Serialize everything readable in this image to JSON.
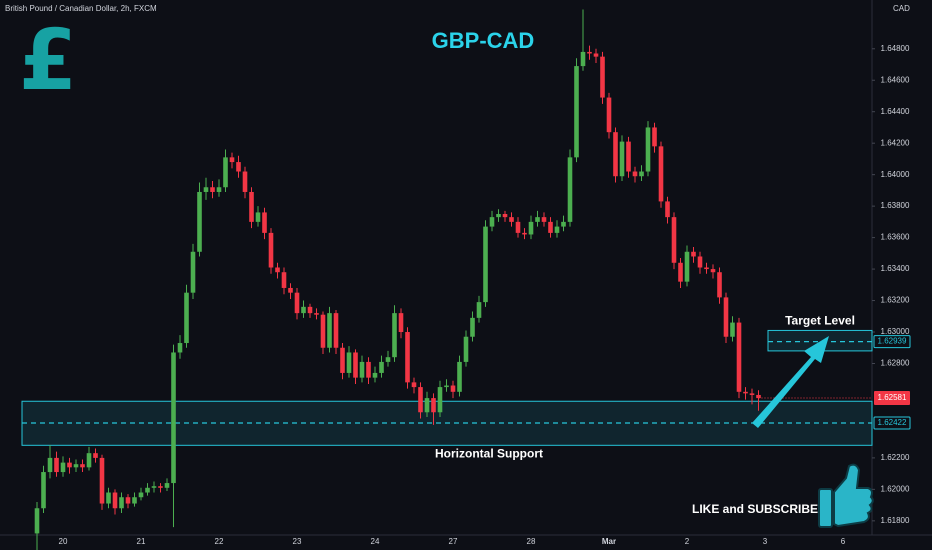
{
  "header": {
    "symbol": "British Pound / Canadian Dollar, 2h, FXCM",
    "currency": "CAD",
    "icon": "£"
  },
  "chart_data": {
    "type": "candlestick",
    "title": "GBP-CAD",
    "categories": [
      null,
      null,
      null,
      null,
      "20",
      null,
      null,
      null,
      null,
      null,
      null,
      null,
      null,
      null,
      null,
      null,
      "21",
      null,
      null,
      null,
      null,
      null,
      null,
      null,
      null,
      null,
      null,
      null,
      "22",
      null,
      null,
      null,
      null,
      null,
      null,
      null,
      null,
      null,
      null,
      null,
      "23",
      null,
      null,
      null,
      null,
      null,
      null,
      null,
      null,
      null,
      null,
      null,
      "24",
      null,
      null,
      null,
      null,
      null,
      null,
      null,
      null,
      null,
      null,
      null,
      "27",
      null,
      null,
      null,
      null,
      null,
      null,
      null,
      null,
      null,
      null,
      null,
      "28",
      null,
      null,
      null,
      null,
      null,
      null,
      null,
      null,
      null,
      null,
      null,
      "Mar",
      null,
      null,
      null,
      null,
      null,
      null,
      null,
      null,
      null,
      null,
      null,
      "2",
      null,
      null,
      null,
      null,
      null,
      null,
      null,
      null,
      null,
      null,
      null,
      "3",
      null,
      null,
      null,
      null,
      null,
      null,
      null,
      null,
      null,
      null,
      null,
      "6"
    ],
    "open": [
      1.6172,
      1.6188,
      1.6211,
      1.622,
      1.6211,
      1.6217,
      1.6214,
      1.6216,
      1.6214,
      1.6223,
      1.622,
      1.6191,
      1.6198,
      1.6188,
      1.6195,
      1.6191,
      1.6195,
      1.6198,
      1.6201,
      1.6202,
      1.6201,
      1.6204,
      1.6287,
      1.6293,
      1.6325,
      1.6351,
      1.6389,
      1.6392,
      1.6389,
      1.6392,
      1.6411,
      1.6408,
      1.6402,
      1.6389,
      1.637,
      1.6376,
      1.6363,
      1.6341,
      1.6338,
      1.6328,
      1.6325,
      1.6312,
      1.6316,
      1.6312,
      1.6311,
      1.629,
      1.6312,
      1.629,
      1.6274,
      1.6287,
      1.6271,
      1.6281,
      1.6271,
      1.6274,
      1.6281,
      1.6284,
      1.6312,
      1.63,
      1.6268,
      1.6265,
      1.6249,
      1.6258,
      1.6249,
      1.6265,
      1.6266,
      1.6262,
      1.6281,
      1.6297,
      1.6309,
      1.6319,
      1.6367,
      1.6373,
      1.6375,
      1.6373,
      1.637,
      1.6363,
      1.6362,
      1.637,
      1.6373,
      1.637,
      1.6363,
      1.6367,
      1.637,
      1.6411,
      1.6469,
      1.6478,
      1.6477,
      1.6475,
      1.6449,
      1.6427,
      1.6399,
      1.6421,
      1.6402,
      1.6399,
      1.6402,
      1.643,
      1.6418,
      1.6383,
      1.6373,
      1.6344,
      1.6332,
      1.6351,
      1.6348,
      1.6341,
      1.634,
      1.6338,
      1.6322,
      1.6297,
      1.6306,
      1.6262,
      1.6261,
      1.626,
      null,
      null,
      null,
      null,
      null,
      null,
      null,
      null,
      null,
      null,
      null,
      null,
      null
    ],
    "high": [
      1.6192,
      1.6215,
      1.6228,
      1.6224,
      1.6221,
      1.622,
      1.6219,
      1.6219,
      1.6227,
      1.6226,
      1.6222,
      1.6201,
      1.62,
      1.6198,
      1.6197,
      1.6198,
      1.6201,
      1.6204,
      1.6205,
      1.6204,
      1.6207,
      1.6292,
      1.6298,
      1.633,
      1.6356,
      1.6395,
      1.6398,
      1.6396,
      1.6397,
      1.6416,
      1.6414,
      1.6412,
      1.6405,
      1.6392,
      1.638,
      1.6379,
      1.6366,
      1.6344,
      1.6341,
      1.6331,
      1.6328,
      1.632,
      1.6318,
      1.6315,
      1.6313,
      1.6316,
      1.6314,
      1.6293,
      1.6291,
      1.6289,
      1.6285,
      1.6284,
      1.6278,
      1.6285,
      1.6288,
      1.6317,
      1.6315,
      1.6303,
      1.6271,
      1.6268,
      1.6262,
      1.6261,
      1.6269,
      1.627,
      1.6269,
      1.6285,
      1.6301,
      1.6313,
      1.6323,
      1.6371,
      1.6377,
      1.6378,
      1.6377,
      1.6376,
      1.6373,
      1.6366,
      1.6374,
      1.6377,
      1.6376,
      1.6373,
      1.6371,
      1.6374,
      1.6416,
      1.6474,
      1.6505,
      1.6482,
      1.648,
      1.6478,
      1.6452,
      1.643,
      1.6425,
      1.6424,
      1.6405,
      1.6406,
      1.6434,
      1.6433,
      1.6421,
      1.6386,
      1.6376,
      1.6347,
      1.6355,
      1.6354,
      1.6351,
      1.6344,
      1.6343,
      1.6341,
      1.6325,
      1.631,
      1.6309,
      1.6265,
      1.6264,
      1.6263,
      null,
      null,
      null,
      null,
      null,
      null,
      null,
      null,
      null,
      null,
      null,
      null,
      null
    ],
    "low": [
      1.616,
      1.6185,
      1.6207,
      1.6208,
      1.6208,
      1.621,
      1.6211,
      1.6211,
      1.6212,
      1.6217,
      1.6187,
      1.6188,
      1.6184,
      1.6185,
      1.6188,
      1.6189,
      1.6193,
      1.6196,
      1.6198,
      1.6198,
      1.6199,
      1.6176,
      1.6283,
      1.629,
      1.6321,
      1.6348,
      1.6384,
      1.6385,
      1.6386,
      1.6389,
      1.6404,
      1.6398,
      1.6385,
      1.6366,
      1.6367,
      1.6359,
      1.6337,
      1.6334,
      1.6324,
      1.6321,
      1.6308,
      1.6309,
      1.6309,
      1.6308,
      1.6286,
      1.6287,
      1.6286,
      1.627,
      1.6271,
      1.6267,
      1.6268,
      1.6267,
      1.6268,
      1.6271,
      1.6278,
      1.6281,
      1.6296,
      1.6264,
      1.6261,
      1.6245,
      1.6246,
      1.6241,
      1.6246,
      1.6262,
      1.6258,
      1.6259,
      1.6278,
      1.6294,
      1.6306,
      1.6316,
      1.6364,
      1.637,
      1.637,
      1.6367,
      1.636,
      1.6359,
      1.6359,
      1.6367,
      1.6367,
      1.636,
      1.636,
      1.6364,
      1.6367,
      1.6408,
      1.6466,
      1.6473,
      1.6471,
      1.6445,
      1.6423,
      1.6395,
      1.6396,
      1.6398,
      1.6395,
      1.6396,
      1.6399,
      1.6414,
      1.6379,
      1.6369,
      1.634,
      1.6328,
      1.6329,
      1.6344,
      1.6337,
      1.6337,
      1.6334,
      1.6318,
      1.6293,
      1.6294,
      1.6258,
      1.6257,
      1.6254,
      1.625,
      null,
      null,
      null,
      null,
      null,
      null,
      null,
      null,
      null,
      null,
      null,
      null,
      null
    ],
    "close": [
      1.6188,
      1.6211,
      1.622,
      1.6211,
      1.6217,
      1.6214,
      1.6216,
      1.6214,
      1.6223,
      1.622,
      1.6191,
      1.6198,
      1.6188,
      1.6195,
      1.6191,
      1.6195,
      1.6198,
      1.6201,
      1.6202,
      1.6201,
      1.6204,
      1.6287,
      1.6293,
      1.6325,
      1.6351,
      1.6389,
      1.6392,
      1.6389,
      1.6392,
      1.6411,
      1.6408,
      1.6402,
      1.6389,
      1.637,
      1.6376,
      1.6363,
      1.6341,
      1.6338,
      1.6328,
      1.6325,
      1.6312,
      1.6316,
      1.6312,
      1.6311,
      1.629,
      1.6312,
      1.629,
      1.6274,
      1.6287,
      1.6271,
      1.6281,
      1.6271,
      1.6274,
      1.6281,
      1.6284,
      1.6312,
      1.63,
      1.6268,
      1.6265,
      1.6249,
      1.6258,
      1.6249,
      1.6265,
      1.6266,
      1.6262,
      1.6281,
      1.6297,
      1.6309,
      1.6319,
      1.6367,
      1.6373,
      1.6375,
      1.6373,
      1.637,
      1.6363,
      1.6362,
      1.637,
      1.6373,
      1.637,
      1.6363,
      1.6367,
      1.637,
      1.6411,
      1.6469,
      1.6478,
      1.6477,
      1.6475,
      1.6449,
      1.6427,
      1.6399,
      1.6421,
      1.6402,
      1.6399,
      1.6402,
      1.643,
      1.6418,
      1.6383,
      1.6373,
      1.6344,
      1.6332,
      1.6351,
      1.6348,
      1.6341,
      1.634,
      1.6338,
      1.6322,
      1.6297,
      1.6306,
      1.6262,
      1.6261,
      1.626,
      1.6258,
      null,
      null,
      null,
      null,
      null,
      null,
      null,
      null,
      null,
      null,
      null,
      null,
      null
    ],
    "up_color": "#4caf50",
    "down_color": "#f23645",
    "ylim": [
      1.6171,
      1.6511
    ],
    "yticks": [
      {
        "value": 1.618,
        "label": "1.61800"
      },
      {
        "value": 1.62,
        "label": "1.62000"
      },
      {
        "value": 1.622,
        "label": "1.62200"
      },
      {
        "value": 1.628,
        "label": "1.62800"
      },
      {
        "value": 1.63,
        "label": "1.63000"
      },
      {
        "value": 1.632,
        "label": "1.63200"
      },
      {
        "value": 1.634,
        "label": "1.63400"
      },
      {
        "value": 1.636,
        "label": "1.63600"
      },
      {
        "value": 1.638,
        "label": "1.63800"
      },
      {
        "value": 1.64,
        "label": "1.64000"
      },
      {
        "value": 1.642,
        "label": "1.64200"
      },
      {
        "value": 1.644,
        "label": "1.64400"
      },
      {
        "value": 1.646,
        "label": "1.64600"
      },
      {
        "value": 1.648,
        "label": "1.64800"
      }
    ],
    "grid": false,
    "zones": [
      {
        "label": "Horizontal Support",
        "range": [
          1.6228,
          1.6256
        ],
        "line": {
          "value": 1.62422,
          "label": "1.62422"
        },
        "color": "#26c6da",
        "label_position": "below"
      },
      {
        "label": "Target Level",
        "range": [
          1.6288,
          1.6301
        ],
        "line": {
          "value": 1.62939,
          "label": "1.62939"
        },
        "color": "#26c6da",
        "label_position": "above"
      }
    ],
    "last_price": {
      "value": 1.62581,
      "label": "1.62581",
      "color": "#f23645"
    }
  },
  "footer": {
    "call_to_action": "LIKE and SUBSCRIBE"
  }
}
